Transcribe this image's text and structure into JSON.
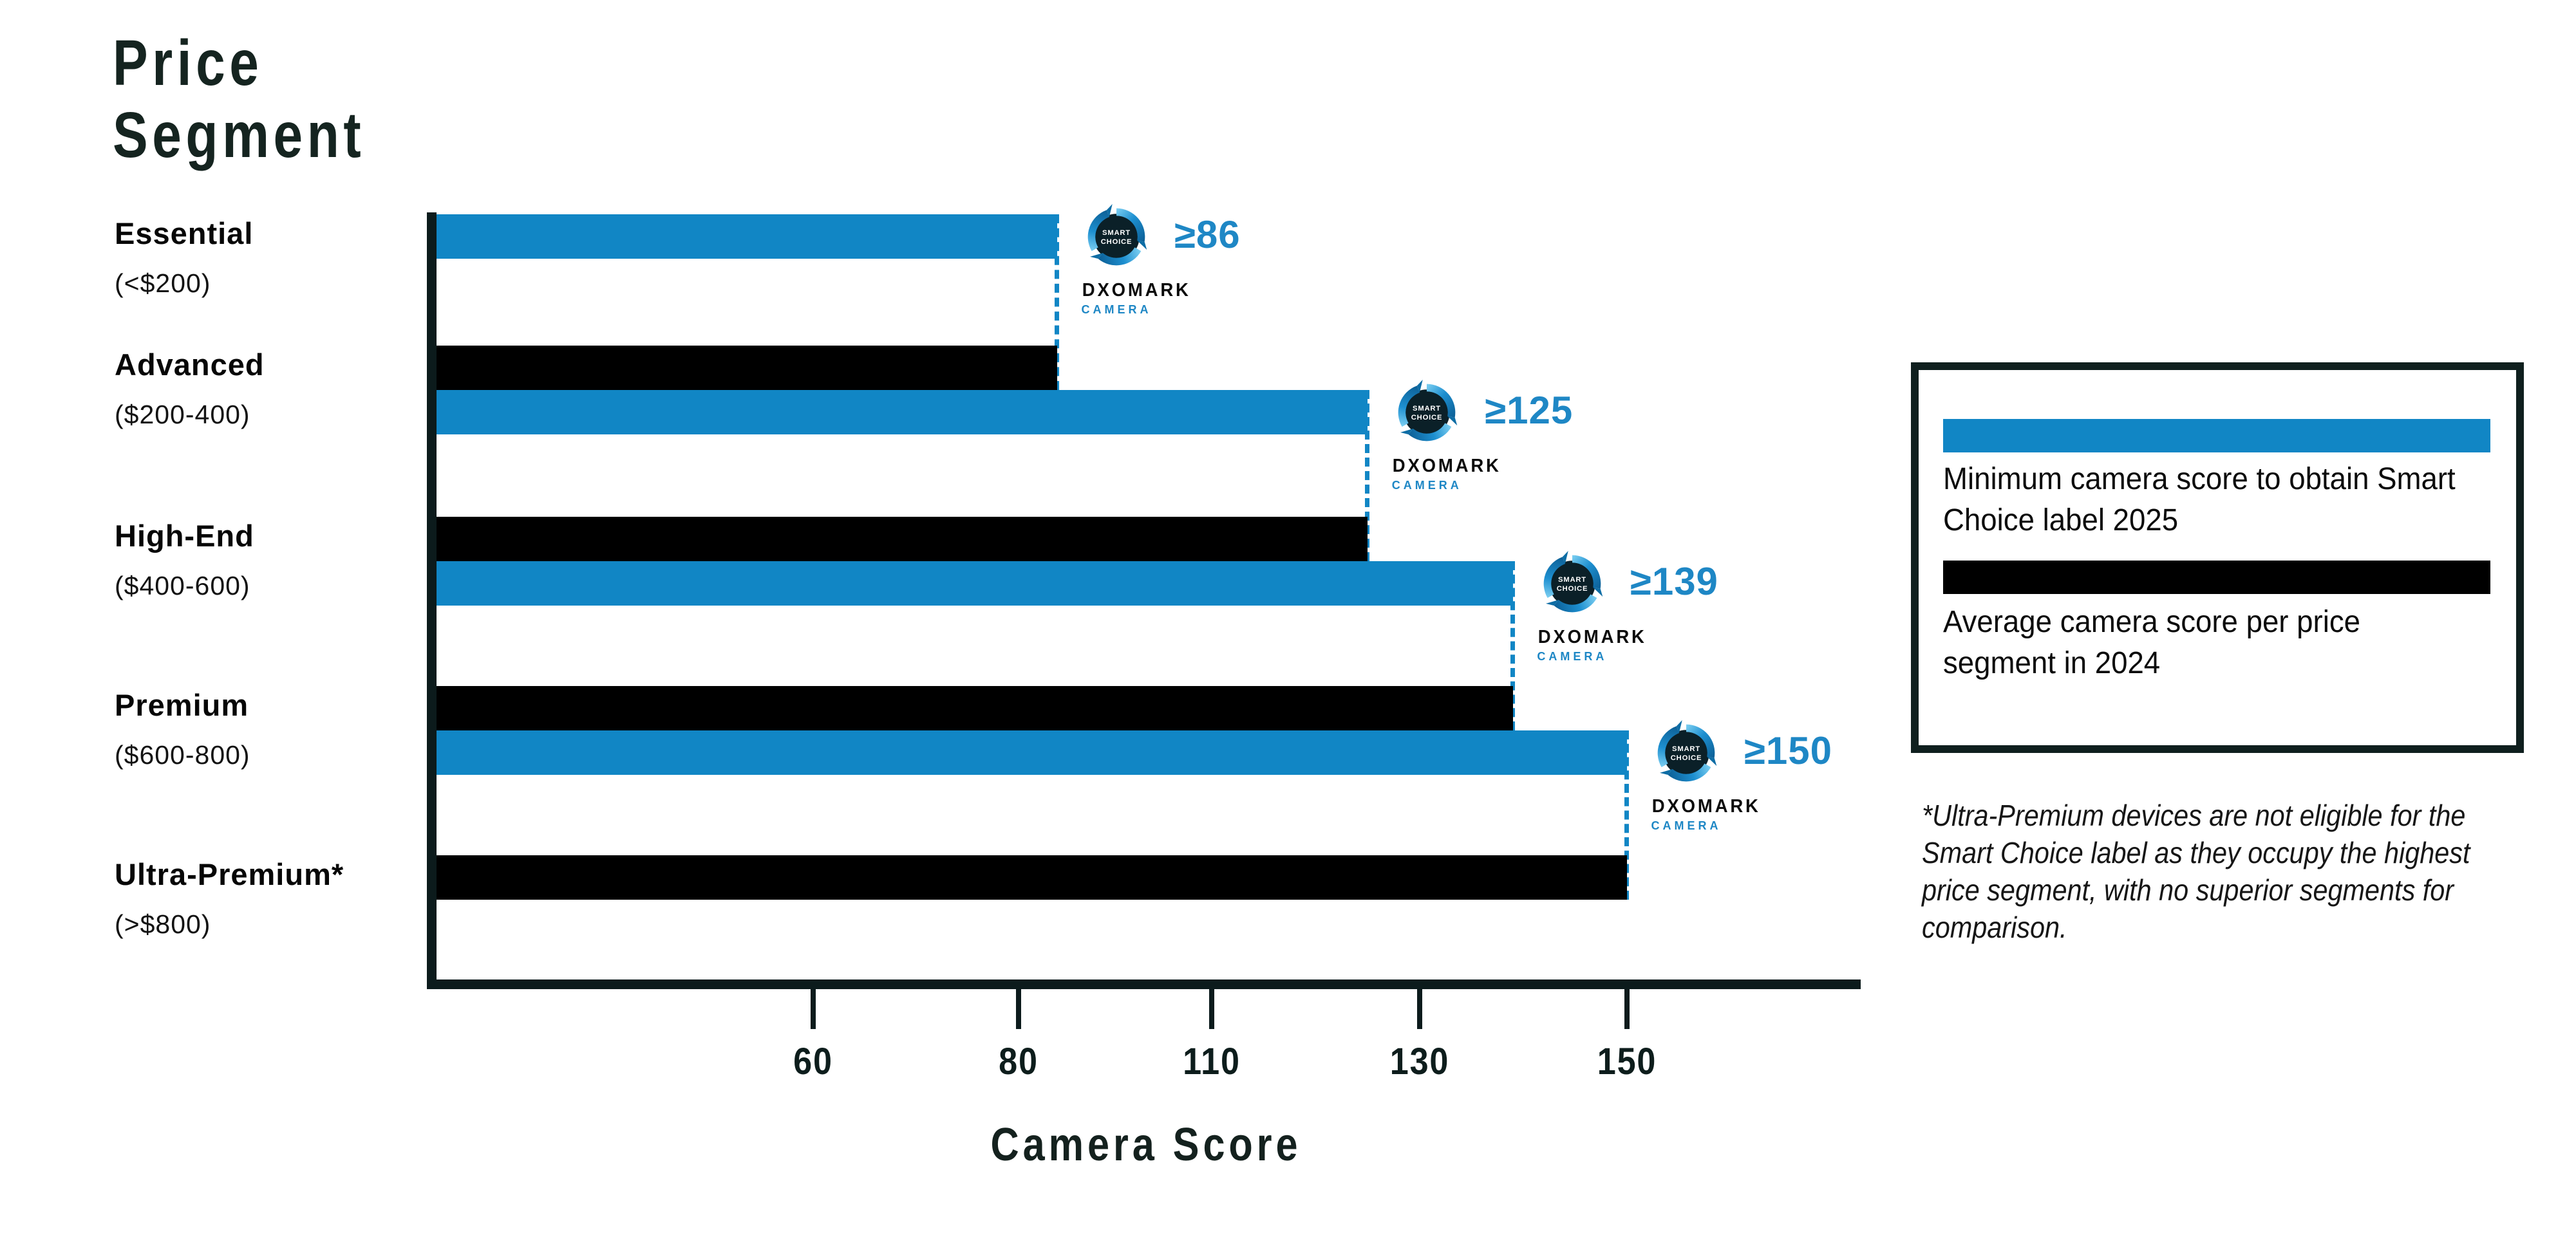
{
  "title": {
    "line1": "Price",
    "line2": "Segment"
  },
  "x_axis": {
    "label": "Camera Score",
    "ticks": [
      "60",
      "80",
      "110",
      "130",
      "150"
    ]
  },
  "badge": {
    "logo_line1": "SMART",
    "logo_line2": "CHOICE",
    "brand": "DXOMARK",
    "sub_brand": "CAMERA"
  },
  "segments": [
    {
      "name": "Essential",
      "range": "(<$200)",
      "min_2025": 86,
      "avg_2024": null,
      "badge_value": "≥86"
    },
    {
      "name": "Advanced",
      "range": "($200-400)",
      "min_2025": 125,
      "avg_2024": 86,
      "badge_value": "≥125"
    },
    {
      "name": "High-End",
      "range": "($400-600)",
      "min_2025": 139,
      "avg_2024": 125,
      "badge_value": "≥139"
    },
    {
      "name": "Premium",
      "range": "($600-800)",
      "min_2025": 150,
      "avg_2024": 139,
      "badge_value": "≥150"
    },
    {
      "name": "Ultra-Premium*",
      "range": "(>$800)",
      "min_2025": null,
      "avg_2024": 150,
      "badge_value": null
    }
  ],
  "legend": {
    "blue_label": "Minimum camera score to obtain Smart Choice label 2025",
    "black_label": "Average camera score per price segment in 2024"
  },
  "footnote": "*Ultra-Premium devices are not eligible for the Smart Choice label as they occupy the highest price segment, with no superior segments for comparison.",
  "colors": {
    "blue": "#1186C5",
    "black": "#000000",
    "axis_dark": "#0c1b1c",
    "value_blue": "#1e87c5"
  },
  "chart_data": {
    "type": "bar",
    "orientation": "horizontal",
    "title": "Price Segment",
    "xlabel": "Camera Score",
    "x_ticks": [
      60,
      80,
      110,
      130,
      150
    ],
    "grid": false,
    "legend_position": "right",
    "categories": [
      "Essential (<$200)",
      "Advanced ($200-400)",
      "High-End ($400-600)",
      "Premium ($600-800)",
      "Ultra-Premium* (>$800)"
    ],
    "series": [
      {
        "name": "Minimum camera score to obtain Smart Choice label 2025",
        "color": "#1186C5",
        "values": [
          86,
          125,
          139,
          150,
          null
        ]
      },
      {
        "name": "Average camera score per price segment in 2024",
        "color": "#000000",
        "values": [
          null,
          86,
          125,
          139,
          150
        ]
      }
    ],
    "annotations": [
      "≥86",
      "≥125",
      "≥139",
      "≥150"
    ]
  }
}
